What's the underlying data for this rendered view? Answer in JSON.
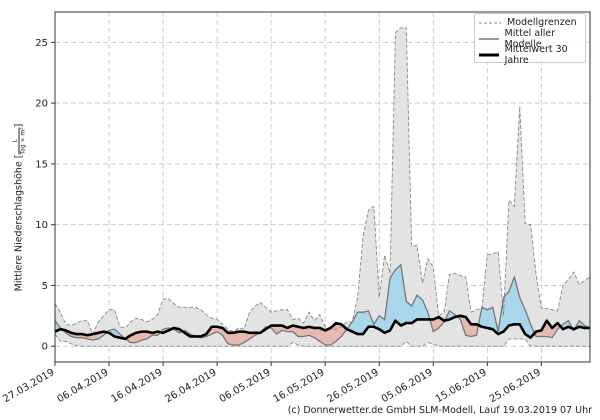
{
  "chart_data": {
    "type": "area",
    "title": "",
    "xlabel": "",
    "ylabel": "Mittlere Niederschlagshöhe",
    "ylabel_unit_num": "L",
    "ylabel_unit_den": "Tag × m²",
    "ylim": [
      -1.3,
      27.5
    ],
    "xlim_days": [
      0,
      99
    ],
    "grid": true,
    "legend_placement": "top-right",
    "legend": [
      "Modellgrenzen",
      "Mittel aller Modelle",
      "Mittelwert 30 Jahre"
    ],
    "yticks": [
      "0",
      "5",
      "10",
      "15",
      "20",
      "25"
    ],
    "ytick_values": [
      0,
      5,
      10,
      15,
      20,
      25
    ],
    "xticks": [
      "27.03.2019",
      "06.04.2019",
      "16.04.2019",
      "26.04.2019",
      "06.05.2019",
      "16.05.2019",
      "26.05.2019",
      "05.06.2019",
      "15.06.2019",
      "25.06.2019"
    ],
    "xtick_days": [
      0,
      10,
      20,
      30,
      40,
      50,
      60,
      70,
      80,
      90
    ],
    "x_start_date": "27.03.2019",
    "series": [
      {
        "name": "Modellgrenzen (max)",
        "values": [
          3.5,
          2.8,
          1.8,
          1.7,
          1.9,
          2.1,
          2.1,
          1.0,
          2.0,
          2.5,
          3.0,
          3.0,
          1.6,
          1.5,
          2.0,
          2.3,
          2.2,
          2.0,
          2.2,
          2.6,
          3.9,
          3.9,
          3.5,
          3.2,
          3.2,
          3.2,
          3.2,
          3.0,
          2.6,
          2.3,
          2.2,
          1.8,
          1.4,
          1.2,
          1.5,
          1.4,
          2.8,
          3.3,
          3.6,
          3.2,
          2.8,
          2.9,
          3.0,
          3.0,
          2.2,
          2.3,
          1.9,
          2.8,
          2.1,
          2.6,
          1.6,
          1.4,
          1.4,
          1.6,
          2.0,
          2.0,
          4.0,
          9.0,
          11.2,
          11.5,
          4.0,
          7.5,
          6.0,
          25.8,
          26.2,
          26.2,
          8.2,
          8.3,
          5.2,
          7.2,
          6.5,
          2.5,
          2.8,
          5.9,
          6.0,
          5.8,
          5.7,
          2.8,
          3.0,
          3.1,
          7.5,
          7.6,
          7.8,
          2.5,
          12.0,
          11.5,
          19.7,
          10.1,
          10.0,
          6.0,
          3.1,
          3.1,
          3.0,
          2.9,
          5.0,
          5.5,
          6.1,
          5.1,
          5.4,
          5.7
        ]
      },
      {
        "name": "Modellgrenzen (min)",
        "values": [
          1.0,
          0.4,
          0.4,
          0.2,
          0.05,
          0,
          0,
          0,
          0,
          0,
          0,
          0,
          0,
          0,
          0,
          0,
          0,
          0,
          0,
          0,
          0,
          0,
          0,
          0,
          0,
          0,
          0,
          0,
          0,
          0,
          0,
          0,
          0,
          0,
          0,
          0,
          0,
          0,
          0,
          0,
          0,
          0,
          0,
          0,
          0.3,
          0.1,
          0,
          0,
          0,
          0,
          0,
          0,
          0,
          0,
          0,
          0,
          0,
          0,
          0,
          0,
          0,
          0,
          0,
          0,
          0,
          0.4,
          0,
          0,
          0,
          0.3,
          0.2,
          0,
          0,
          0,
          0,
          0,
          0,
          0,
          0,
          0,
          0,
          0,
          0,
          0,
          0.6,
          0.6,
          0.6,
          0.6,
          0,
          0,
          0,
          0,
          0,
          0,
          0,
          0,
          0,
          0,
          0,
          0
        ]
      },
      {
        "name": "Mittel aller Modelle",
        "values": [
          2.1,
          1.5,
          1.1,
          0.8,
          0.7,
          0.7,
          0.6,
          0.5,
          0.6,
          0.9,
          1.3,
          1.4,
          1.0,
          0.6,
          0.3,
          0.3,
          0.5,
          0.6,
          0.9,
          0.9,
          1.4,
          1.5,
          1.4,
          1.1,
          1.3,
          1.0,
          0.8,
          0.7,
          0.8,
          1.0,
          1.2,
          0.9,
          0.2,
          0.1,
          0.1,
          0.3,
          0.6,
          0.9,
          1.1,
          1.6,
          1.5,
          1.0,
          1.3,
          1.2,
          1.2,
          0.8,
          0.8,
          0.9,
          0.7,
          0.4,
          0.1,
          0.1,
          0.4,
          0.8,
          1.4,
          2.0,
          2.8,
          2.8,
          2.9,
          1.8,
          2.5,
          2.2,
          5.6,
          6.3,
          6.7,
          3.7,
          3.3,
          4.2,
          3.8,
          2.8,
          1.2,
          1.5,
          2.0,
          2.9,
          2.6,
          2.2,
          0.9,
          0.8,
          0.9,
          3.2,
          3.0,
          3.2,
          1.2,
          4.0,
          4.5,
          5.7,
          4.0,
          3.0,
          1.8,
          0.8,
          0.8,
          0.8,
          0.7,
          1.4,
          1.8,
          2.1,
          1.3,
          2.1,
          1.7,
          1.5
        ]
      },
      {
        "name": "Mittelwert 30 Jahre",
        "values": [
          1.2,
          1.4,
          1.3,
          1.1,
          1.0,
          1.0,
          0.9,
          1.0,
          1.1,
          1.2,
          1.1,
          0.8,
          0.7,
          0.6,
          0.9,
          1.1,
          1.2,
          1.2,
          1.1,
          1.2,
          1.1,
          1.3,
          1.5,
          1.4,
          1.1,
          0.8,
          0.8,
          0.8,
          1.0,
          1.6,
          1.6,
          1.5,
          1.1,
          1.1,
          1.2,
          1.2,
          1.1,
          1.1,
          1.1,
          1.4,
          1.7,
          1.7,
          1.7,
          1.5,
          1.7,
          1.6,
          1.5,
          1.6,
          1.5,
          1.5,
          1.3,
          1.5,
          1.9,
          1.8,
          1.4,
          1.2,
          1.0,
          1.0,
          1.6,
          1.6,
          1.4,
          1.1,
          1.3,
          2.1,
          1.7,
          1.9,
          1.9,
          2.2,
          2.2,
          2.2,
          2.2,
          2.4,
          2.1,
          2.2,
          2.4,
          2.5,
          2.4,
          1.8,
          1.8,
          1.6,
          1.5,
          1.4,
          1.0,
          1.2,
          1.7,
          1.8,
          1.8,
          1.0,
          0.7,
          1.2,
          1.3,
          2.1,
          1.5,
          1.9,
          1.4,
          1.6,
          1.4,
          1.6,
          1.5,
          1.5
        ]
      }
    ]
  },
  "colors": {
    "range_fill": "#e3e3e3",
    "above": "#a9d7ea",
    "below": "#e7baae",
    "models_line": "#777777",
    "climate_line": "#000000"
  },
  "footer": "(c) Donnerwetter.de GmbH SLM-Modell, Lauf 19.03.2019 07 Uhr"
}
